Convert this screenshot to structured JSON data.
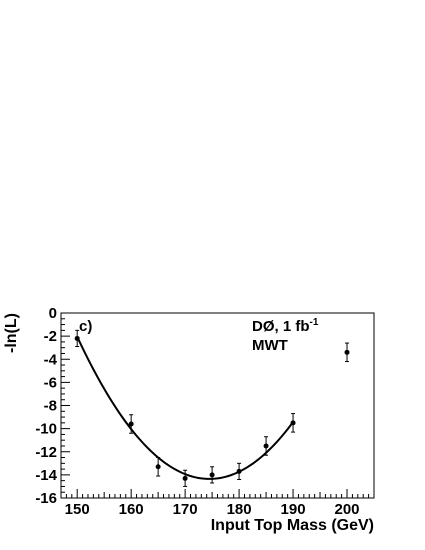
{
  "chart_data": {
    "type": "scatter",
    "xlabel": "Input Top Mass (GeV)",
    "ylabel": "-ln(L)",
    "xlim": [
      147,
      205
    ],
    "ylim": [
      -16,
      0
    ],
    "x_ticks": [
      150,
      160,
      170,
      180,
      190,
      200
    ],
    "y_ticks": [
      0,
      -2,
      -4,
      -6,
      -8,
      -10,
      -12,
      -14,
      -16
    ],
    "y_tick_labels": [
      "0",
      "-2",
      "-4",
      "-6",
      "-8",
      "-10",
      "-12",
      "-14",
      "-16"
    ],
    "grid": false,
    "panel_label": "c)",
    "annotation": {
      "line1_main": "DØ, 1 fb",
      "line1_sup": "-1",
      "line2": "MWT"
    },
    "series": [
      {
        "points": [
          {
            "x": 150,
            "y": -2.2,
            "err": 0.7
          },
          {
            "x": 160,
            "y": -9.6,
            "err": 0.8
          },
          {
            "x": 165,
            "y": -13.3,
            "err": 0.8
          },
          {
            "x": 170,
            "y": -14.3,
            "err": 0.7
          },
          {
            "x": 175,
            "y": -14.0,
            "err": 0.7
          },
          {
            "x": 180,
            "y": -13.7,
            "err": 0.7
          },
          {
            "x": 185,
            "y": -11.5,
            "err": 0.8
          },
          {
            "x": 190,
            "y": -9.5,
            "err": 0.8
          },
          {
            "x": 200,
            "y": -3.4,
            "err": 0.8
          }
        ]
      }
    ],
    "fit": {
      "type": "parabola",
      "x_range": [
        150,
        190
      ],
      "vertex_x": 174.5,
      "vertex_y": -14.35,
      "curvature": 0.0205
    }
  }
}
